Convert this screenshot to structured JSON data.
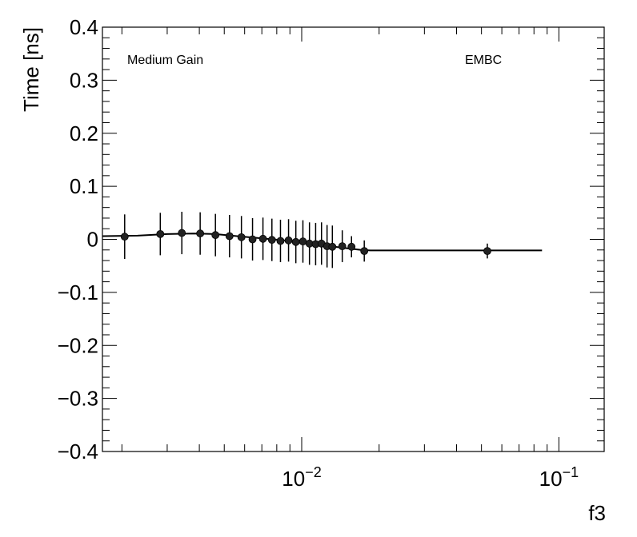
{
  "chart_data": {
    "type": "scatter",
    "xlabel": "f3",
    "ylabel": "Time [ns]",
    "xscale": "log",
    "xlim": [
      0.00168,
      0.15
    ],
    "ylim": [
      -0.4,
      0.4
    ],
    "grid": false,
    "annotations": [
      "Medium Gain",
      "EMBC"
    ],
    "yticks": [
      {
        "value": 0.4,
        "label": "0.4"
      },
      {
        "value": 0.3,
        "label": "0.3"
      },
      {
        "value": 0.2,
        "label": "0.2"
      },
      {
        "value": 0.1,
        "label": "0.1"
      },
      {
        "value": 0.0,
        "label": "0"
      },
      {
        "value": -0.1,
        "label": "−0.1"
      },
      {
        "value": -0.2,
        "label": "−0.2"
      },
      {
        "value": -0.3,
        "label": "−0.3"
      },
      {
        "value": -0.4,
        "label": "−0.4"
      }
    ],
    "xticks": [
      {
        "value": 0.01,
        "base": "10",
        "exp": "−2"
      },
      {
        "value": 0.1,
        "base": "10",
        "exp": "−1"
      }
    ],
    "points": [
      {
        "x": 0.00205,
        "y": 0.005,
        "yerr": 0.042
      },
      {
        "x": 0.00282,
        "y": 0.01,
        "yerr": 0.04
      },
      {
        "x": 0.00342,
        "y": 0.012,
        "yerr": 0.04
      },
      {
        "x": 0.00403,
        "y": 0.011,
        "yerr": 0.04
      },
      {
        "x": 0.00462,
        "y": 0.008,
        "yerr": 0.04
      },
      {
        "x": 0.00524,
        "y": 0.006,
        "yerr": 0.04
      },
      {
        "x": 0.00583,
        "y": 0.004,
        "yerr": 0.04
      },
      {
        "x": 0.00644,
        "y": 0.0,
        "yerr": 0.04
      },
      {
        "x": 0.00707,
        "y": 0.001,
        "yerr": 0.04
      },
      {
        "x": 0.00766,
        "y": -0.001,
        "yerr": 0.04
      },
      {
        "x": 0.00827,
        "y": -0.003,
        "yerr": 0.04
      },
      {
        "x": 0.00889,
        "y": -0.002,
        "yerr": 0.04
      },
      {
        "x": 0.00949,
        "y": -0.005,
        "yerr": 0.04
      },
      {
        "x": 0.01011,
        "y": -0.004,
        "yerr": 0.04
      },
      {
        "x": 0.01072,
        "y": -0.008,
        "yerr": 0.04
      },
      {
        "x": 0.01133,
        "y": -0.009,
        "yerr": 0.04
      },
      {
        "x": 0.01194,
        "y": -0.008,
        "yerr": 0.04
      },
      {
        "x": 0.01255,
        "y": -0.013,
        "yerr": 0.04
      },
      {
        "x": 0.01316,
        "y": -0.014,
        "yerr": 0.04
      },
      {
        "x": 0.01438,
        "y": -0.013,
        "yerr": 0.03
      },
      {
        "x": 0.01562,
        "y": -0.014,
        "yerr": 0.02
      },
      {
        "x": 0.01751,
        "y": -0.022,
        "yerr": 0.02
      },
      {
        "x": 0.0527,
        "y": -0.022,
        "yerr": 0.014
      }
    ],
    "fit_line": [
      {
        "x": 0.00168,
        "y": 0.006
      },
      {
        "x": 0.0023,
        "y": 0.007
      },
      {
        "x": 0.003,
        "y": 0.01
      },
      {
        "x": 0.0038,
        "y": 0.011
      },
      {
        "x": 0.0046,
        "y": 0.01
      },
      {
        "x": 0.0056,
        "y": 0.006
      },
      {
        "x": 0.007,
        "y": 0.002
      },
      {
        "x": 0.0085,
        "y": -0.002
      },
      {
        "x": 0.01,
        "y": -0.006
      },
      {
        "x": 0.012,
        "y": -0.011
      },
      {
        "x": 0.0145,
        "y": -0.016
      },
      {
        "x": 0.017,
        "y": -0.02
      },
      {
        "x": 0.0185,
        "y": -0.021
      },
      {
        "x": 0.086,
        "y": -0.021
      }
    ]
  }
}
